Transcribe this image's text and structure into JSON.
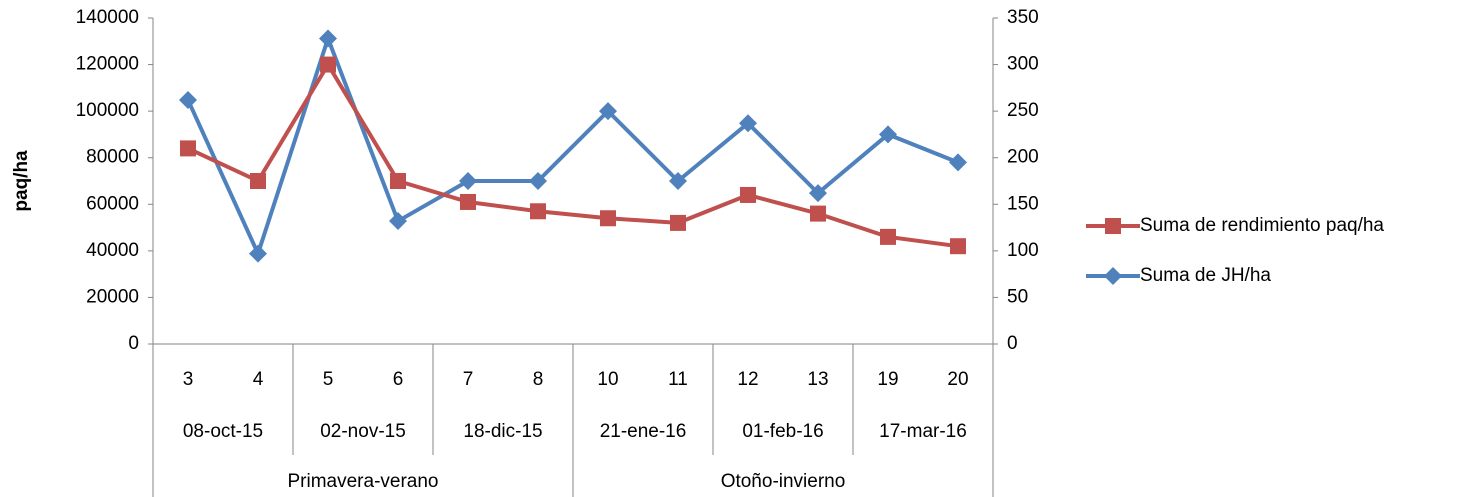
{
  "chart_data": {
    "type": "line",
    "y_label": "paq/ha",
    "season_groups": [
      {
        "label": "Primavera-verano",
        "date_groups": [
          {
            "label": "08-oct-15",
            "categories": [
              "3",
              "4"
            ]
          },
          {
            "label": "02-nov-15",
            "categories": [
              "5",
              "6"
            ]
          },
          {
            "label": "18-dic-15",
            "categories": [
              "7",
              "8"
            ]
          }
        ]
      },
      {
        "label": "Otoño-invierno",
        "date_groups": [
          {
            "label": "21-ene-16",
            "categories": [
              "10",
              "11"
            ]
          },
          {
            "label": "01-feb-16",
            "categories": [
              "12",
              "13"
            ]
          },
          {
            "label": "17-mar-16",
            "categories": [
              "19",
              "20"
            ]
          }
        ]
      }
    ],
    "series": [
      {
        "name": "Suma de rendimiento paq/ha",
        "color": "#c0504d",
        "marker": "square",
        "values": [
          84000,
          70000,
          120000,
          70000,
          61000,
          57000,
          54000,
          52000,
          64000,
          56000,
          46000,
          42000
        ]
      },
      {
        "name": "Suma de JH/ha",
        "color": "#4f81bd",
        "marker": "diamond",
        "axis": "y2",
        "values": [
          262,
          97,
          328,
          132,
          175,
          175,
          250,
          175,
          237,
          162,
          225,
          195
        ]
      }
    ],
    "ylim": [
      0,
      140000
    ],
    "yticks": [
      0,
      20000,
      40000,
      60000,
      80000,
      100000,
      120000,
      140000
    ],
    "y2lim": [
      0,
      350
    ],
    "y2ticks": [
      0,
      50,
      100,
      150,
      200,
      250,
      300,
      350
    ],
    "legend": "right"
  }
}
